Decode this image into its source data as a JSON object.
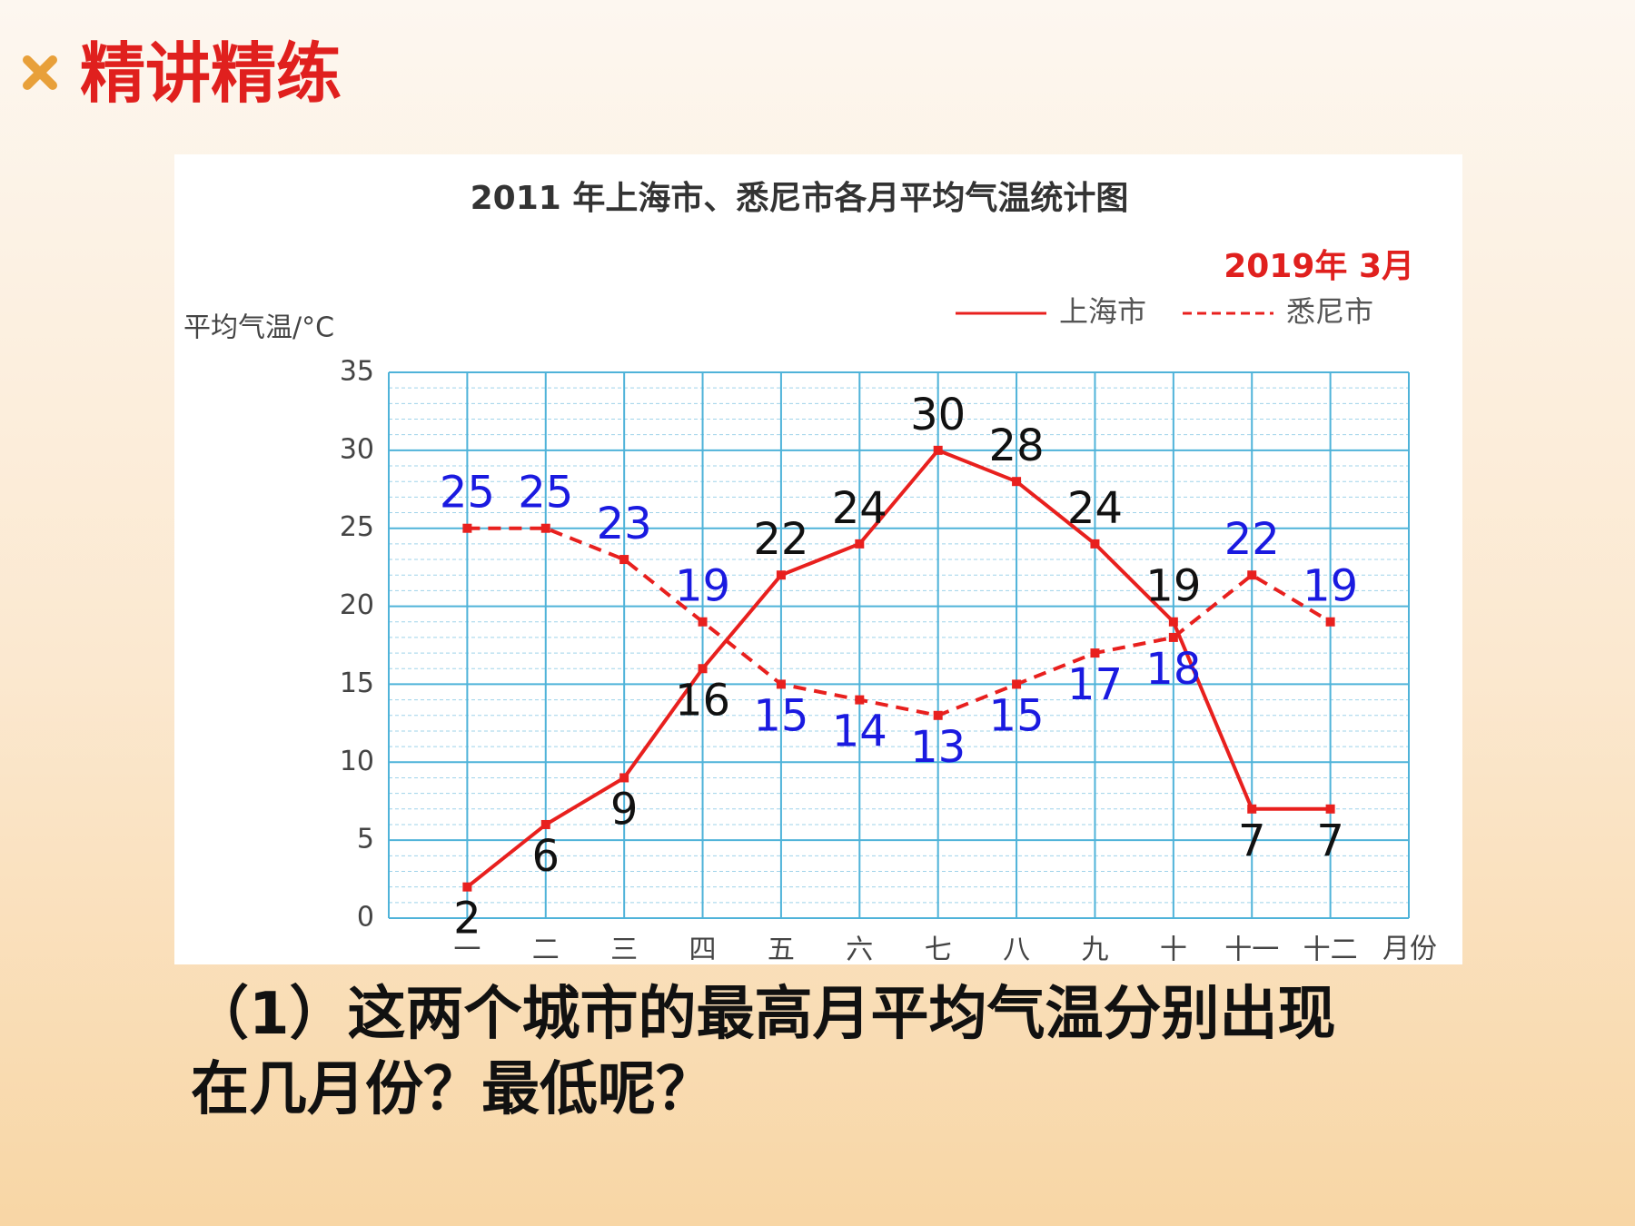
{
  "header": {
    "title": "精讲精练"
  },
  "chart_data": {
    "type": "line",
    "title": "2011 年上海市、悉尼市各月平均气温统计图",
    "annotation": "2019年 3月",
    "y_label": "平均气温/°C",
    "x_label": "月份",
    "categories": [
      "一",
      "二",
      "三",
      "四",
      "五",
      "六",
      "七",
      "八",
      "九",
      "十",
      "十一",
      "十二"
    ],
    "series": [
      {
        "name": "上海市",
        "color": "#e8201e",
        "dash": false,
        "label_color": "#111111",
        "values": [
          2,
          6,
          9,
          16,
          22,
          24,
          30,
          28,
          24,
          19,
          7,
          7
        ]
      },
      {
        "name": "悉尼市",
        "color": "#e8201e",
        "dash": true,
        "label_color": "#1a1ae0",
        "values": [
          25,
          25,
          23,
          19,
          15,
          14,
          13,
          15,
          17,
          18,
          22,
          19
        ]
      }
    ],
    "ylim": [
      0,
      35
    ],
    "yticks": [
      0,
      5,
      10,
      15,
      20,
      25,
      30,
      35
    ],
    "grid": true,
    "legend": "top-right"
  },
  "question": {
    "lines": [
      "（1）这两个城市的最高月平均气温分别出现",
      "在几月份？最低呢？"
    ]
  }
}
